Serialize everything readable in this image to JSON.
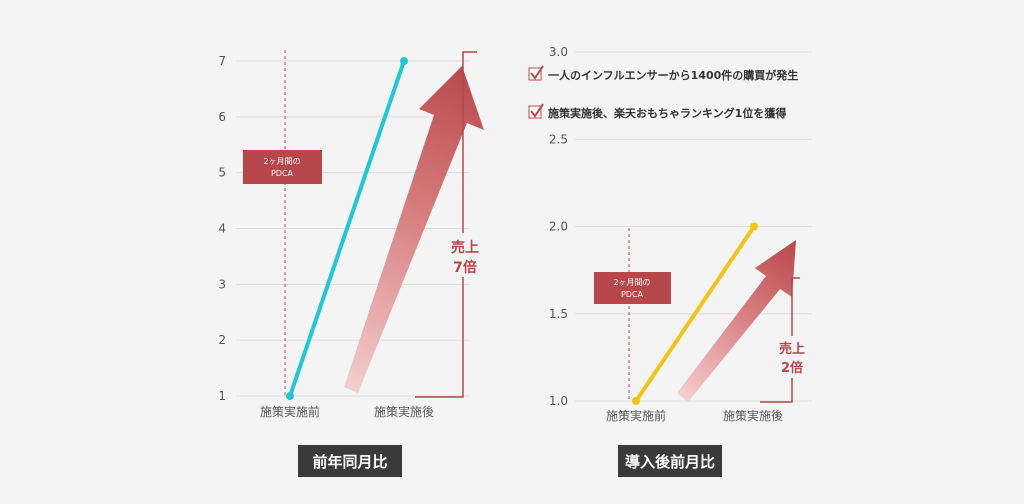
{
  "colors": {
    "background": "#f4f4f4",
    "axis_text": "#555555",
    "grid": "#dedede",
    "accent_red": "#b8474b",
    "accent_red_light": "#f2c6c6",
    "line_cyan": "#1ec8d6",
    "line_yellow": "#f2c414",
    "caption_bg": "#3a3a3a",
    "caption_text": "#ffffff"
  },
  "chart_data": [
    {
      "type": "line",
      "caption": "前年同月比",
      "categories": [
        "施策実施前",
        "施策実施後"
      ],
      "series": [
        {
          "color": "#1ec8d6",
          "values": [
            1,
            7
          ]
        }
      ],
      "yticks": [
        "1",
        "2",
        "3",
        "4",
        "5",
        "6",
        "7"
      ],
      "ylim": [
        1,
        7
      ],
      "grid": true,
      "pdca_box": {
        "line1": "2ヶ月間の",
        "line2": "PDCA"
      },
      "growth": {
        "line1": "売上",
        "line2": "7倍"
      }
    },
    {
      "type": "line",
      "caption": "導入後前月比",
      "categories": [
        "施策実施前",
        "施策実施後"
      ],
      "series": [
        {
          "color": "#f2c414",
          "values": [
            1.0,
            2.0
          ]
        }
      ],
      "yticks": [
        "1.0",
        "1.5",
        "2.0",
        "2.5",
        "3.0"
      ],
      "ylim": [
        1.0,
        3.0
      ],
      "grid": true,
      "pdca_box": {
        "line1": "2ヶ月間の",
        "line2": "PDCA"
      },
      "growth": {
        "line1": "売上",
        "line2": "2倍"
      },
      "checklist": [
        "一人のインフルエンサーから1400件の購買が発生",
        "施策実施後、楽天おもちゃランキング1位を獲得"
      ]
    }
  ]
}
